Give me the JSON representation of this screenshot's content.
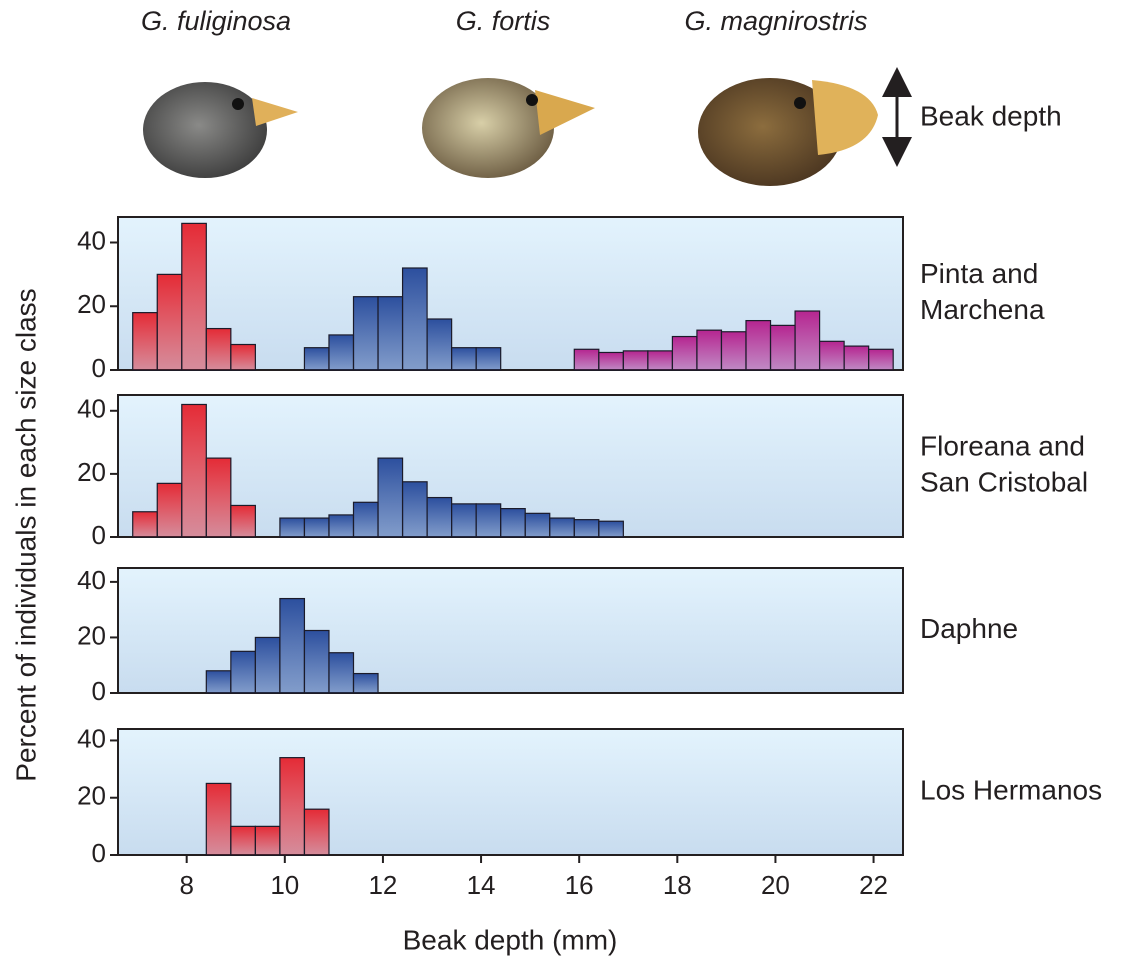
{
  "header": {
    "species": [
      "G. fuliginosa",
      "G. fortis",
      "G. magnirostris"
    ],
    "indicator": "Beak depth"
  },
  "axes": {
    "xlabel": "Beak depth (mm)",
    "ylabel": "Percent of individuals in each size class",
    "xlim": [
      6.6,
      22.6
    ],
    "xticks": [
      8,
      10,
      12,
      14,
      16,
      18,
      20,
      22
    ]
  },
  "chart_data": [
    {
      "type": "histogram",
      "title": [
        "Pinta and",
        "Marchena"
      ],
      "ylim": [
        0,
        48
      ],
      "yticks": [
        0,
        20,
        40
      ],
      "series": [
        {
          "color": "#e42b36",
          "bins": [
            6.9,
            7.4,
            7.9,
            8.4,
            8.9,
            9.4
          ],
          "values": [
            18,
            30,
            46,
            13,
            8
          ]
        },
        {
          "color": "#2c4f9e",
          "bins": [
            10.4,
            10.9,
            11.4,
            11.9,
            12.4,
            12.9,
            13.4,
            13.9,
            14.4
          ],
          "values": [
            7,
            11,
            23,
            23,
            32,
            16,
            7,
            7
          ]
        },
        {
          "color": "#b52590",
          "bins": [
            15.9,
            16.4,
            16.9,
            17.4,
            17.9,
            18.4,
            18.9,
            19.4,
            19.9,
            20.4,
            20.9,
            21.4,
            21.9,
            22.4
          ],
          "values": [
            6.5,
            5.5,
            6,
            6,
            10.5,
            12.5,
            12,
            15.5,
            14,
            18.5,
            9,
            7.5,
            6.5
          ]
        }
      ]
    },
    {
      "type": "histogram",
      "title": [
        "Floreana and",
        "San Cristobal"
      ],
      "ylim": [
        0,
        45
      ],
      "yticks": [
        0,
        20,
        40
      ],
      "series": [
        {
          "color": "#e42b36",
          "bins": [
            6.9,
            7.4,
            7.9,
            8.4,
            8.9,
            9.4
          ],
          "values": [
            8,
            17,
            42,
            25,
            10
          ]
        },
        {
          "color": "#2c4f9e",
          "bins": [
            9.9,
            10.4,
            10.9,
            11.4,
            11.9,
            12.4,
            12.9,
            13.4,
            13.9,
            14.4,
            14.9,
            15.4,
            15.9,
            16.4,
            16.9
          ],
          "values": [
            6,
            6,
            7,
            11,
            25,
            17.5,
            12.5,
            10.5,
            10.5,
            9,
            7.5,
            6,
            5.5,
            5
          ]
        }
      ]
    },
    {
      "type": "histogram",
      "title": [
        "Daphne"
      ],
      "ylim": [
        0,
        45
      ],
      "yticks": [
        0,
        20,
        40
      ],
      "series": [
        {
          "color": "#2c4f9e",
          "bins": [
            8.4,
            8.9,
            9.4,
            9.9,
            10.4,
            10.9,
            11.4,
            11.9
          ],
          "values": [
            8,
            15,
            20,
            34,
            22.5,
            14.5,
            7
          ]
        }
      ]
    },
    {
      "type": "histogram",
      "title": [
        "Los Hermanos"
      ],
      "ylim": [
        0,
        44
      ],
      "yticks": [
        0,
        20,
        40
      ],
      "series": [
        {
          "color": "#e42b36",
          "bins": [
            8.4,
            8.9,
            9.4,
            9.9,
            10.4,
            10.9
          ],
          "values": [
            25,
            10,
            10,
            34,
            16
          ]
        }
      ]
    }
  ]
}
